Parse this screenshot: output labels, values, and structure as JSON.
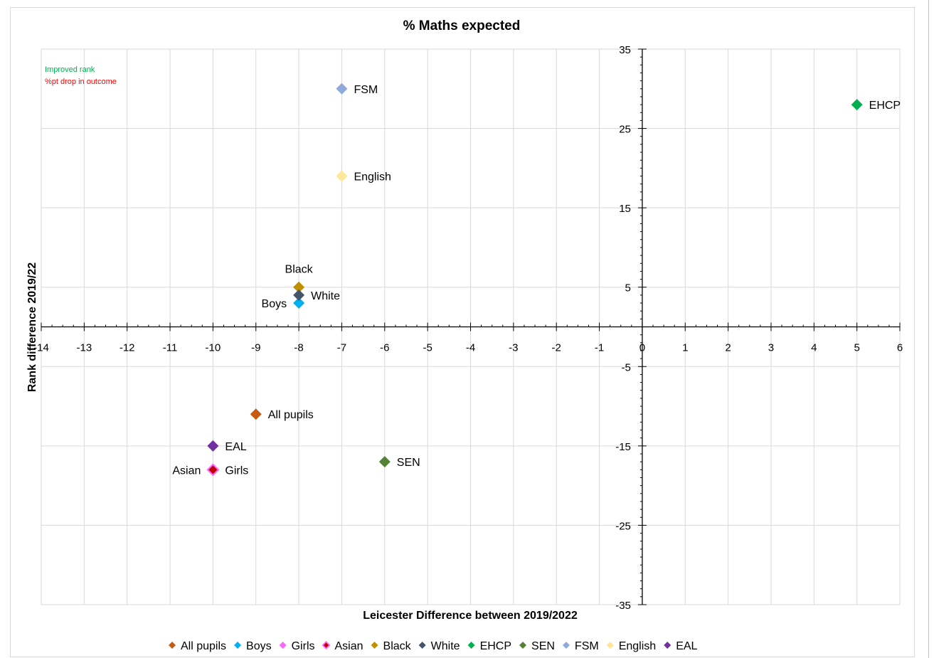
{
  "chart_data": {
    "type": "scatter",
    "title": "% Maths expected",
    "xlabel": "Leicester Difference between 2019/2022",
    "ylabel": "Rank difference 2019/22",
    "xlim": [
      -14,
      6
    ],
    "ylim": [
      -35,
      35
    ],
    "x_ticks": [
      -14,
      -13,
      -12,
      -11,
      -10,
      -9,
      -8,
      -7,
      -6,
      -5,
      -4,
      -3,
      -2,
      -1,
      0,
      1,
      2,
      3,
      4,
      5,
      6
    ],
    "y_ticks": [
      35,
      25,
      15,
      5,
      -5,
      -15,
      -25,
      -35
    ],
    "grid": true,
    "legend_position": "bottom",
    "annotations": [
      {
        "text": "Improved rank",
        "color": "#00b050"
      },
      {
        "text": "%pt drop in outcome",
        "color": "#ff0000"
      }
    ],
    "series": [
      {
        "name": "All pupils",
        "color": "#c55a11",
        "x": -9,
        "y": -11,
        "label": "All pupils",
        "label_side": "right"
      },
      {
        "name": "Boys",
        "color": "#00b0f0",
        "x": -8,
        "y": 3,
        "label": "Boys",
        "label_side": "left"
      },
      {
        "name": "Girls",
        "color": "#ff66ff",
        "x": -10,
        "y": -18,
        "label": "Girls",
        "label_side": "right"
      },
      {
        "name": "Asian",
        "color": "#c00000",
        "x": -10,
        "y": -18,
        "label": "Asian",
        "label_side": "left",
        "outline": "#ff66ff"
      },
      {
        "name": "Black",
        "color": "#bf9000",
        "x": -8,
        "y": 5,
        "label": "Black",
        "label_side": "above"
      },
      {
        "name": "White",
        "color": "#44546a",
        "x": -8,
        "y": 4,
        "label": "White",
        "label_side": "right"
      },
      {
        "name": "EHCP",
        "color": "#00b050",
        "x": 5,
        "y": 28,
        "label": "EHCP",
        "label_side": "right"
      },
      {
        "name": "SEN",
        "color": "#548235",
        "x": -6,
        "y": -17,
        "label": "SEN",
        "label_side": "right"
      },
      {
        "name": "FSM",
        "color": "#8faadc",
        "x": -7,
        "y": 30,
        "label": "FSM",
        "label_side": "right"
      },
      {
        "name": "English",
        "color": "#ffe699",
        "x": -7,
        "y": 19,
        "label": "English",
        "label_side": "right"
      },
      {
        "name": "EAL",
        "color": "#7030a0",
        "x": -10,
        "y": -15,
        "label": "EAL",
        "label_side": "right"
      }
    ]
  }
}
